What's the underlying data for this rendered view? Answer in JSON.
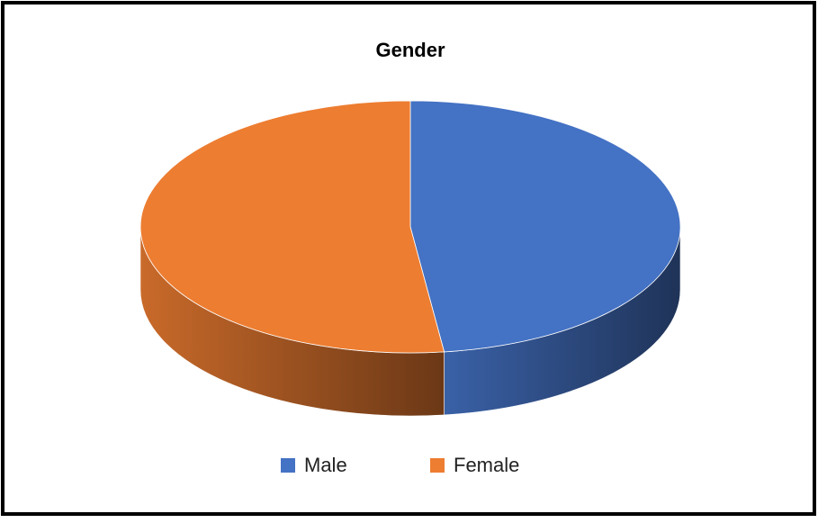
{
  "chart_data": {
    "type": "pie",
    "title": "Gender",
    "categories": [
      "Male",
      "Female"
    ],
    "values": [
      48,
      52
    ],
    "colors": [
      "#4472c4",
      "#ed7d31"
    ],
    "legend": "bottom"
  }
}
